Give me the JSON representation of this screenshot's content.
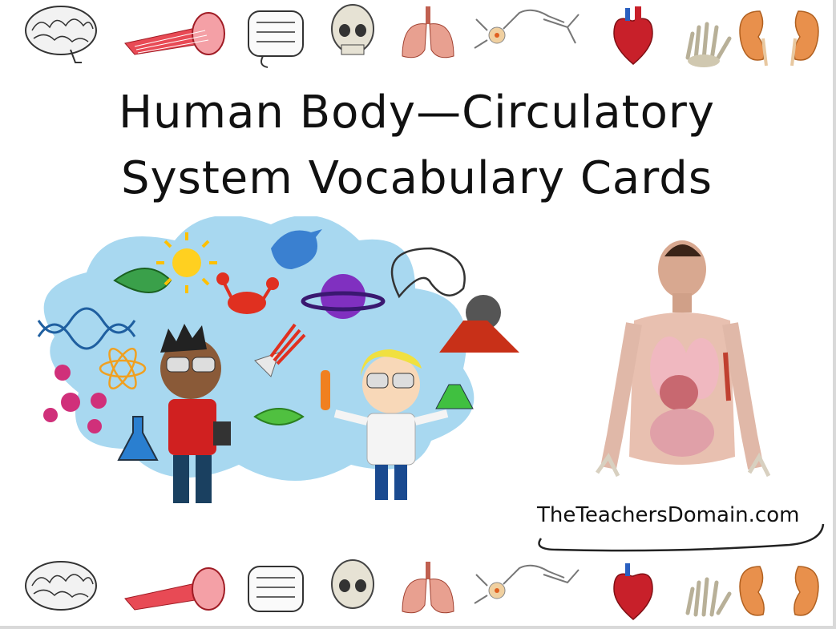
{
  "title": {
    "line1": "Human Body—Circulatory",
    "line2": "System Vocabulary Cards"
  },
  "brand": {
    "text": "TheTeachersDomain.com"
  },
  "organ_icons": [
    "brain-icon",
    "muscle-icon",
    "intestine-icon",
    "skull-icon",
    "lungs-icon",
    "neuron-icon",
    "heart-icon",
    "hand-skeleton-icon",
    "kidneys-icon"
  ],
  "colors": {
    "cloud": "#a8d8f0",
    "muscle": "#e0404a",
    "heart": "#c0202a",
    "kidney": "#e08a4a",
    "lungs": "#d98070"
  }
}
